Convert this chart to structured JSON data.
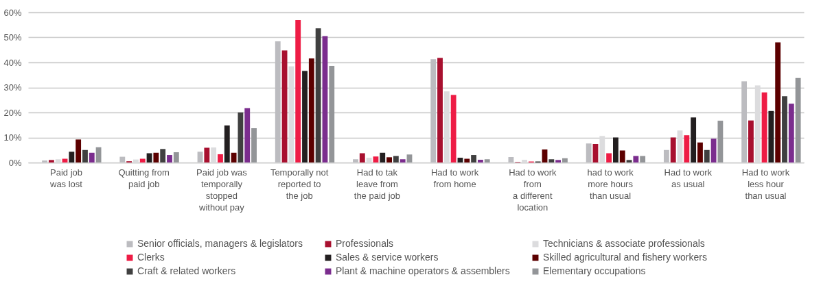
{
  "chart_data": {
    "type": "bar",
    "categories": [
      "Paid job\nwas lost",
      "Quitting from\npaid job",
      "Paid job was\ntemporally\nstopped\nwithout pay",
      "Temporally not\nreported to\nthe job",
      "Had to tak\nleave from\nthe paid job",
      "Had to work\nfrom home",
      "Had to work\nfrom\na different\nlocation",
      "had to work\nmore hours\nthan usual",
      "Had to work\nas usual",
      "Had to work\nless hour\nthan usual"
    ],
    "series": [
      {
        "name": "Senior officials, managers & legislators",
        "color": "#bcbcc0",
        "values": [
          0.8,
          2.3,
          4.3,
          48.4,
          1.3,
          41.3,
          2.2,
          7.6,
          5,
          32.5
        ]
      },
      {
        "name": "Professionals",
        "color": "#a8102f",
        "values": [
          1,
          0.5,
          5.9,
          44.8,
          3.7,
          41.8,
          0.2,
          7.4,
          10,
          16.8
        ]
      },
      {
        "name": "Technicians & associate professionals",
        "color": "#dcdcde",
        "values": [
          1.3,
          1.2,
          6,
          38.4,
          1.9,
          28.4,
          1.1,
          10.6,
          12.8,
          30.8
        ]
      },
      {
        "name": "Clerks",
        "color": "#ee1c45",
        "values": [
          1.5,
          1.5,
          3.3,
          57,
          2.4,
          27,
          0.4,
          3.7,
          10.9,
          28
        ]
      },
      {
        "name": "Sales & service workers",
        "color": "#231f20",
        "values": [
          4.3,
          3.7,
          14.8,
          36.6,
          3.9,
          1.9,
          0.4,
          10,
          18,
          20.6
        ]
      },
      {
        "name": "Skilled agricultural and fishery workers",
        "color": "#5c0000",
        "values": [
          9.2,
          3.9,
          3.9,
          41.6,
          2.1,
          1.5,
          5.2,
          4.8,
          8,
          48
        ]
      },
      {
        "name": "Craft & related workers",
        "color": "#404040",
        "values": [
          5,
          5.4,
          20,
          53.6,
          2.6,
          3,
          1.3,
          1,
          5,
          26.5
        ]
      },
      {
        "name": "Plant & machine operators & assemblers",
        "color": "#7b2d8e",
        "values": [
          3.9,
          3,
          21.7,
          50.5,
          1.3,
          1.1,
          1,
          2.6,
          9.5,
          23.5
        ]
      },
      {
        "name": "Elementary occupations",
        "color": "#939598",
        "values": [
          6.1,
          4.1,
          13.7,
          38.6,
          3.2,
          1.3,
          1.7,
          2.6,
          16.7,
          33.8
        ]
      }
    ],
    "ylim": [
      0,
      60
    ],
    "yticks": [
      {
        "value": 0,
        "label": "0%"
      },
      {
        "value": 10,
        "label": "10%"
      },
      {
        "value": 20,
        "label": "20%"
      },
      {
        "value": 30,
        "label": "30%"
      },
      {
        "value": 40,
        "label": "40%"
      },
      {
        "value": 50,
        "label": "50%"
      },
      {
        "value": 60,
        "label": "60%"
      }
    ],
    "grid": "y",
    "legend": "bottom"
  }
}
